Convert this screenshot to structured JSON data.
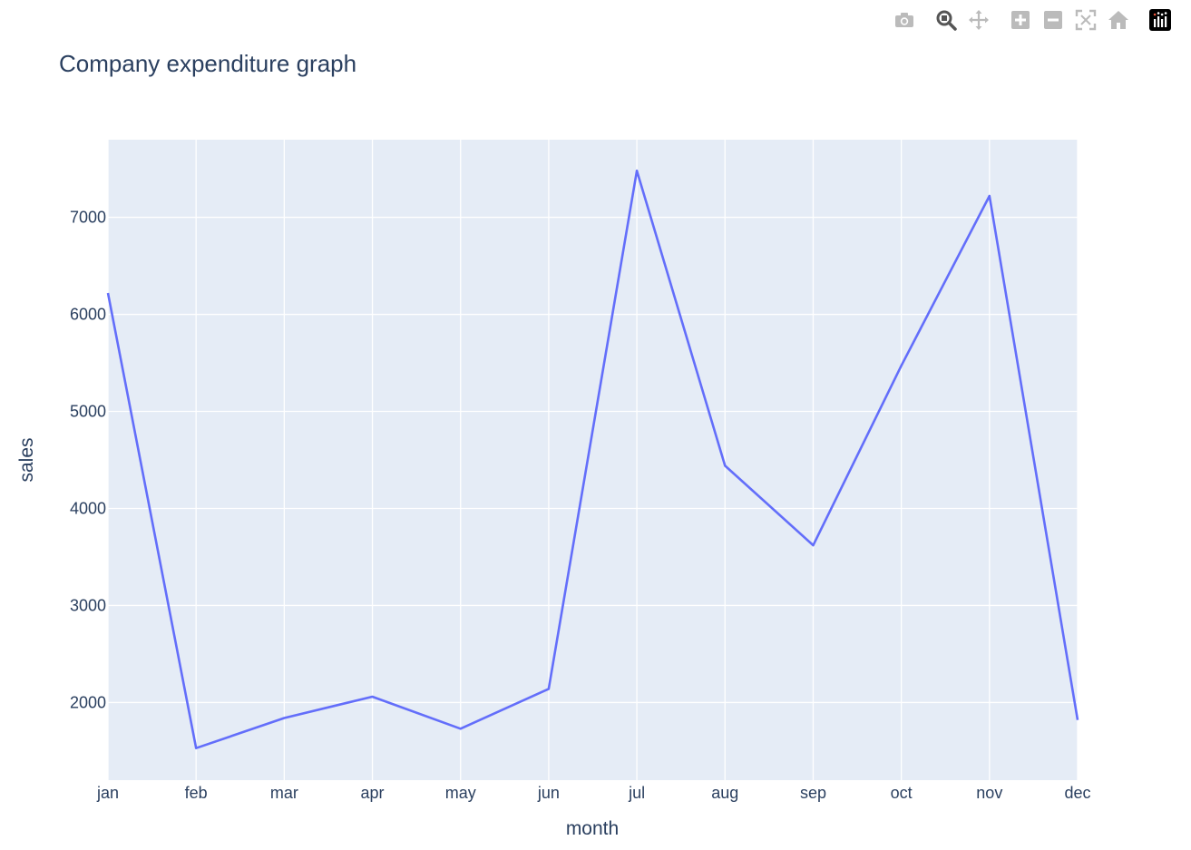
{
  "modebar": {
    "buttons": [
      {
        "name": "camera-icon",
        "color": "#bbbbbb"
      },
      {
        "name": "zoom-icon",
        "color": "#555555"
      },
      {
        "name": "pan-icon",
        "color": "#bbbbbb"
      },
      {
        "name": "zoom-in-icon",
        "color": "#bbbbbb"
      },
      {
        "name": "zoom-out-icon",
        "color": "#bbbbbb"
      },
      {
        "name": "autoscale-icon",
        "color": "#bbbbbb"
      },
      {
        "name": "reset-axes-icon",
        "color": "#bbbbbb"
      },
      {
        "name": "plotly-logo-icon",
        "color": "#000000"
      }
    ]
  },
  "chart_data": {
    "type": "line",
    "title": "Company expenditure graph",
    "xlabel": "month",
    "ylabel": "sales",
    "categories": [
      "jan",
      "feb",
      "mar",
      "apr",
      "may",
      "jun",
      "jul",
      "aug",
      "sep",
      "oct",
      "nov",
      "dec"
    ],
    "series": [
      {
        "values": [
          6220,
          1530,
          1840,
          2060,
          1730,
          2140,
          7480,
          4440,
          3620,
          5470,
          7220,
          1820
        ],
        "color": "#636efa"
      }
    ],
    "ylim": [
      1200,
      7800
    ],
    "yticks": [
      2000,
      3000,
      4000,
      5000,
      6000,
      7000
    ],
    "grid": true,
    "legend": "none",
    "colors": {
      "plot_bg": "#e5ecf6",
      "grid": "#ffffff",
      "text": "#2a3f5f"
    }
  }
}
